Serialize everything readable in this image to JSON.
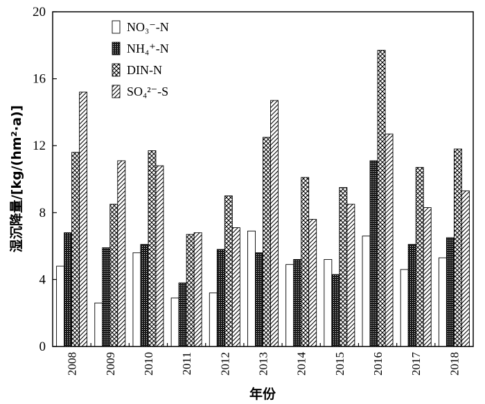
{
  "chart_data": {
    "type": "bar",
    "title": "",
    "xlabel": "年份",
    "ylabel": "湿沉降量/[kg/(hm²·a)]",
    "ylim": [
      0,
      20
    ],
    "yticks": [
      0,
      4,
      8,
      12,
      16,
      20
    ],
    "grid": false,
    "legend_position": "top-left",
    "categories": [
      "2008",
      "2009",
      "2010",
      "2011",
      "2012",
      "2013",
      "2014",
      "2015",
      "2016",
      "2017",
      "2018"
    ],
    "series": [
      {
        "name": "NO₃⁻-N",
        "pattern": "white",
        "values": [
          4.8,
          2.6,
          5.6,
          2.9,
          3.2,
          6.9,
          4.9,
          5.2,
          6.6,
          4.6,
          5.3
        ]
      },
      {
        "name": "NH₄⁺-N",
        "pattern": "dots",
        "values": [
          6.8,
          5.9,
          6.1,
          3.8,
          5.8,
          5.6,
          5.2,
          4.3,
          11.1,
          6.1,
          6.5
        ]
      },
      {
        "name": "DIN-N",
        "pattern": "crosshatch",
        "values": [
          11.6,
          8.5,
          11.7,
          6.7,
          9.0,
          12.5,
          10.1,
          9.5,
          17.7,
          10.7,
          11.8
        ]
      },
      {
        "name": "SO₄²⁻-S",
        "pattern": "diagonal",
        "values": [
          15.2,
          11.1,
          10.8,
          6.8,
          7.1,
          14.7,
          7.6,
          8.5,
          12.7,
          8.3,
          9.3
        ]
      }
    ]
  }
}
